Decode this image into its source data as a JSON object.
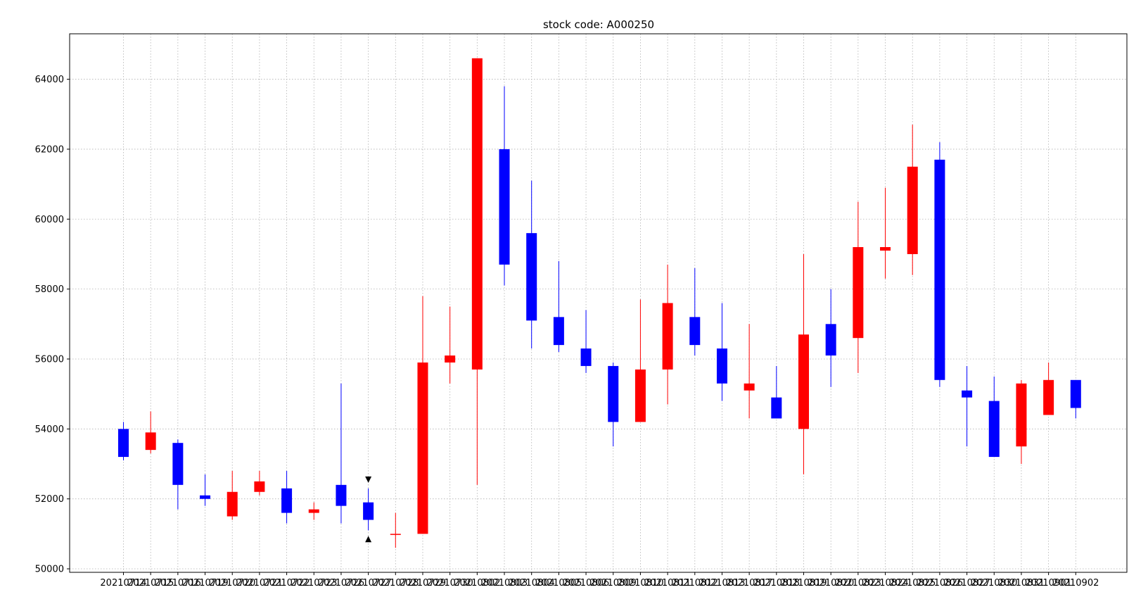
{
  "chart_data": {
    "type": "candlestick",
    "title": "stock code: A000250",
    "xlabel": "",
    "ylabel": "",
    "ylim": [
      49900,
      65300
    ],
    "yticks": [
      50000,
      52000,
      54000,
      56000,
      58000,
      60000,
      62000,
      64000
    ],
    "grid": true,
    "colors": {
      "up": "#ff0000",
      "down": "#0000ff",
      "marker": "#000000"
    },
    "categories": [
      "20210714",
      "20210715",
      "20210716",
      "20210719",
      "20210720",
      "20210721",
      "20210722",
      "20210723",
      "20210726",
      "20210727",
      "20210728",
      "20210729",
      "20210730",
      "20210802",
      "20210803",
      "20210804",
      "20210805",
      "20210806",
      "20210809",
      "20210810",
      "20210811",
      "20210812",
      "20210813",
      "20210817",
      "20210818",
      "20210819",
      "20210820",
      "20210823",
      "20210824",
      "20210825",
      "20210826",
      "20210827",
      "20210830",
      "20210831",
      "20210901",
      "20210902"
    ],
    "candles": [
      {
        "open": 54000,
        "high": 54200,
        "low": 53100,
        "close": 53200
      },
      {
        "open": 53400,
        "high": 54500,
        "low": 53300,
        "close": 53900
      },
      {
        "open": 53600,
        "high": 53700,
        "low": 51700,
        "close": 52400
      },
      {
        "open": 52100,
        "high": 52700,
        "low": 51800,
        "close": 52000
      },
      {
        "open": 51500,
        "high": 52800,
        "low": 51400,
        "close": 52200
      },
      {
        "open": 52200,
        "high": 52800,
        "low": 52100,
        "close": 52500
      },
      {
        "open": 52300,
        "high": 52800,
        "low": 51300,
        "close": 51600
      },
      {
        "open": 51600,
        "high": 51900,
        "low": 51400,
        "close": 51700
      },
      {
        "open": 52400,
        "high": 55300,
        "low": 51300,
        "close": 51800
      },
      {
        "open": 51900,
        "high": 52300,
        "low": 51100,
        "close": 51400
      },
      {
        "open": 51000,
        "high": 51600,
        "low": 50600,
        "close": 51000
      },
      {
        "open": 51000,
        "high": 57800,
        "low": 51000,
        "close": 55900
      },
      {
        "open": 55900,
        "high": 57500,
        "low": 55300,
        "close": 56100
      },
      {
        "open": 55700,
        "high": 64600,
        "low": 52400,
        "close": 64600
      },
      {
        "open": 62000,
        "high": 63800,
        "low": 58100,
        "close": 58700
      },
      {
        "open": 59600,
        "high": 61100,
        "low": 56300,
        "close": 57100
      },
      {
        "open": 57200,
        "high": 58800,
        "low": 56200,
        "close": 56400
      },
      {
        "open": 56300,
        "high": 57400,
        "low": 55600,
        "close": 55800
      },
      {
        "open": 55800,
        "high": 55900,
        "low": 53500,
        "close": 54200
      },
      {
        "open": 54200,
        "high": 57700,
        "low": 54200,
        "close": 55700
      },
      {
        "open": 55700,
        "high": 58700,
        "low": 54700,
        "close": 57600
      },
      {
        "open": 57200,
        "high": 58600,
        "low": 56100,
        "close": 56400
      },
      {
        "open": 56300,
        "high": 57600,
        "low": 54800,
        "close": 55300
      },
      {
        "open": 55100,
        "high": 57000,
        "low": 54300,
        "close": 55300
      },
      {
        "open": 54900,
        "high": 55800,
        "low": 54300,
        "close": 54300
      },
      {
        "open": 54000,
        "high": 59000,
        "low": 52700,
        "close": 56700
      },
      {
        "open": 57000,
        "high": 58000,
        "low": 55200,
        "close": 56100
      },
      {
        "open": 56600,
        "high": 60500,
        "low": 55600,
        "close": 59200
      },
      {
        "open": 59100,
        "high": 60900,
        "low": 58300,
        "close": 59200
      },
      {
        "open": 59000,
        "high": 62700,
        "low": 58400,
        "close": 61500
      },
      {
        "open": 61700,
        "high": 62200,
        "low": 55200,
        "close": 55400
      },
      {
        "open": 55100,
        "high": 55800,
        "low": 53500,
        "close": 54900
      },
      {
        "open": 54800,
        "high": 55500,
        "low": 53200,
        "close": 53200
      },
      {
        "open": 53500,
        "high": 55400,
        "low": 53000,
        "close": 55300
      },
      {
        "open": 54400,
        "high": 55900,
        "low": 54400,
        "close": 55400
      },
      {
        "open": 55400,
        "high": 55400,
        "low": 54300,
        "close": 54600
      }
    ],
    "markers": [
      {
        "category_index": 9,
        "value": 52550,
        "symbol": "triangle-down"
      },
      {
        "category_index": 9,
        "value": 50850,
        "symbol": "triangle-up"
      }
    ]
  }
}
